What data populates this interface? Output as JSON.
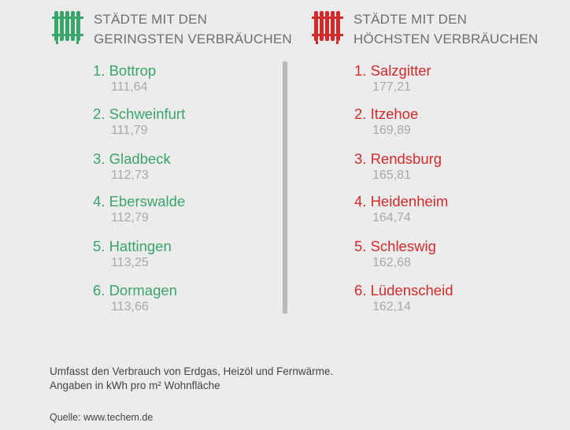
{
  "chart_data": {
    "type": "table",
    "unit": "Angaben in kWh pro m² Wohnfläche",
    "tables": [
      {
        "title_line1": "STÄDTE MIT DEN",
        "title_line2": "GERINGSTEN VERBRÄUCHEN",
        "color": "#3aa56a",
        "icon": "radiator-icon",
        "rows": [
          {
            "rank": "1.",
            "city": "Bottrop",
            "value": "111,64"
          },
          {
            "rank": "2.",
            "city": "Schweinfurt",
            "value": "111,79"
          },
          {
            "rank": "3.",
            "city": "Gladbeck",
            "value": "112,73"
          },
          {
            "rank": "4.",
            "city": "Eberswalde",
            "value": "112,79"
          },
          {
            "rank": "5.",
            "city": "Hattingen",
            "value": "113,25"
          },
          {
            "rank": "6.",
            "city": "Dormagen",
            "value": "113,66"
          }
        ]
      },
      {
        "title_line1": "STÄDTE MIT DEN",
        "title_line2": "HÖCHSTEN VERBRÄUCHEN",
        "color": "#d42a2a",
        "icon": "radiator-icon",
        "rows": [
          {
            "rank": "1.",
            "city": "Salzgitter",
            "value": "177,21"
          },
          {
            "rank": "2.",
            "city": "Itzehoe",
            "value": "169,89"
          },
          {
            "rank": "3.",
            "city": "Rendsburg",
            "value": "165,81"
          },
          {
            "rank": "4.",
            "city": "Heidenheim",
            "value": "164,74"
          },
          {
            "rank": "5.",
            "city": "Schleswig",
            "value": "162,68"
          },
          {
            "rank": "6.",
            "city": "Lüdenscheid",
            "value": "162,14"
          }
        ]
      }
    ]
  },
  "footer": {
    "note_line1": "Umfasst den Verbrauch von Erdgas, Heizöl und Fernwärme.",
    "note_line2": "Angaben in kWh pro m² Wohnfläche",
    "source": "Quelle: www.techem.de"
  }
}
